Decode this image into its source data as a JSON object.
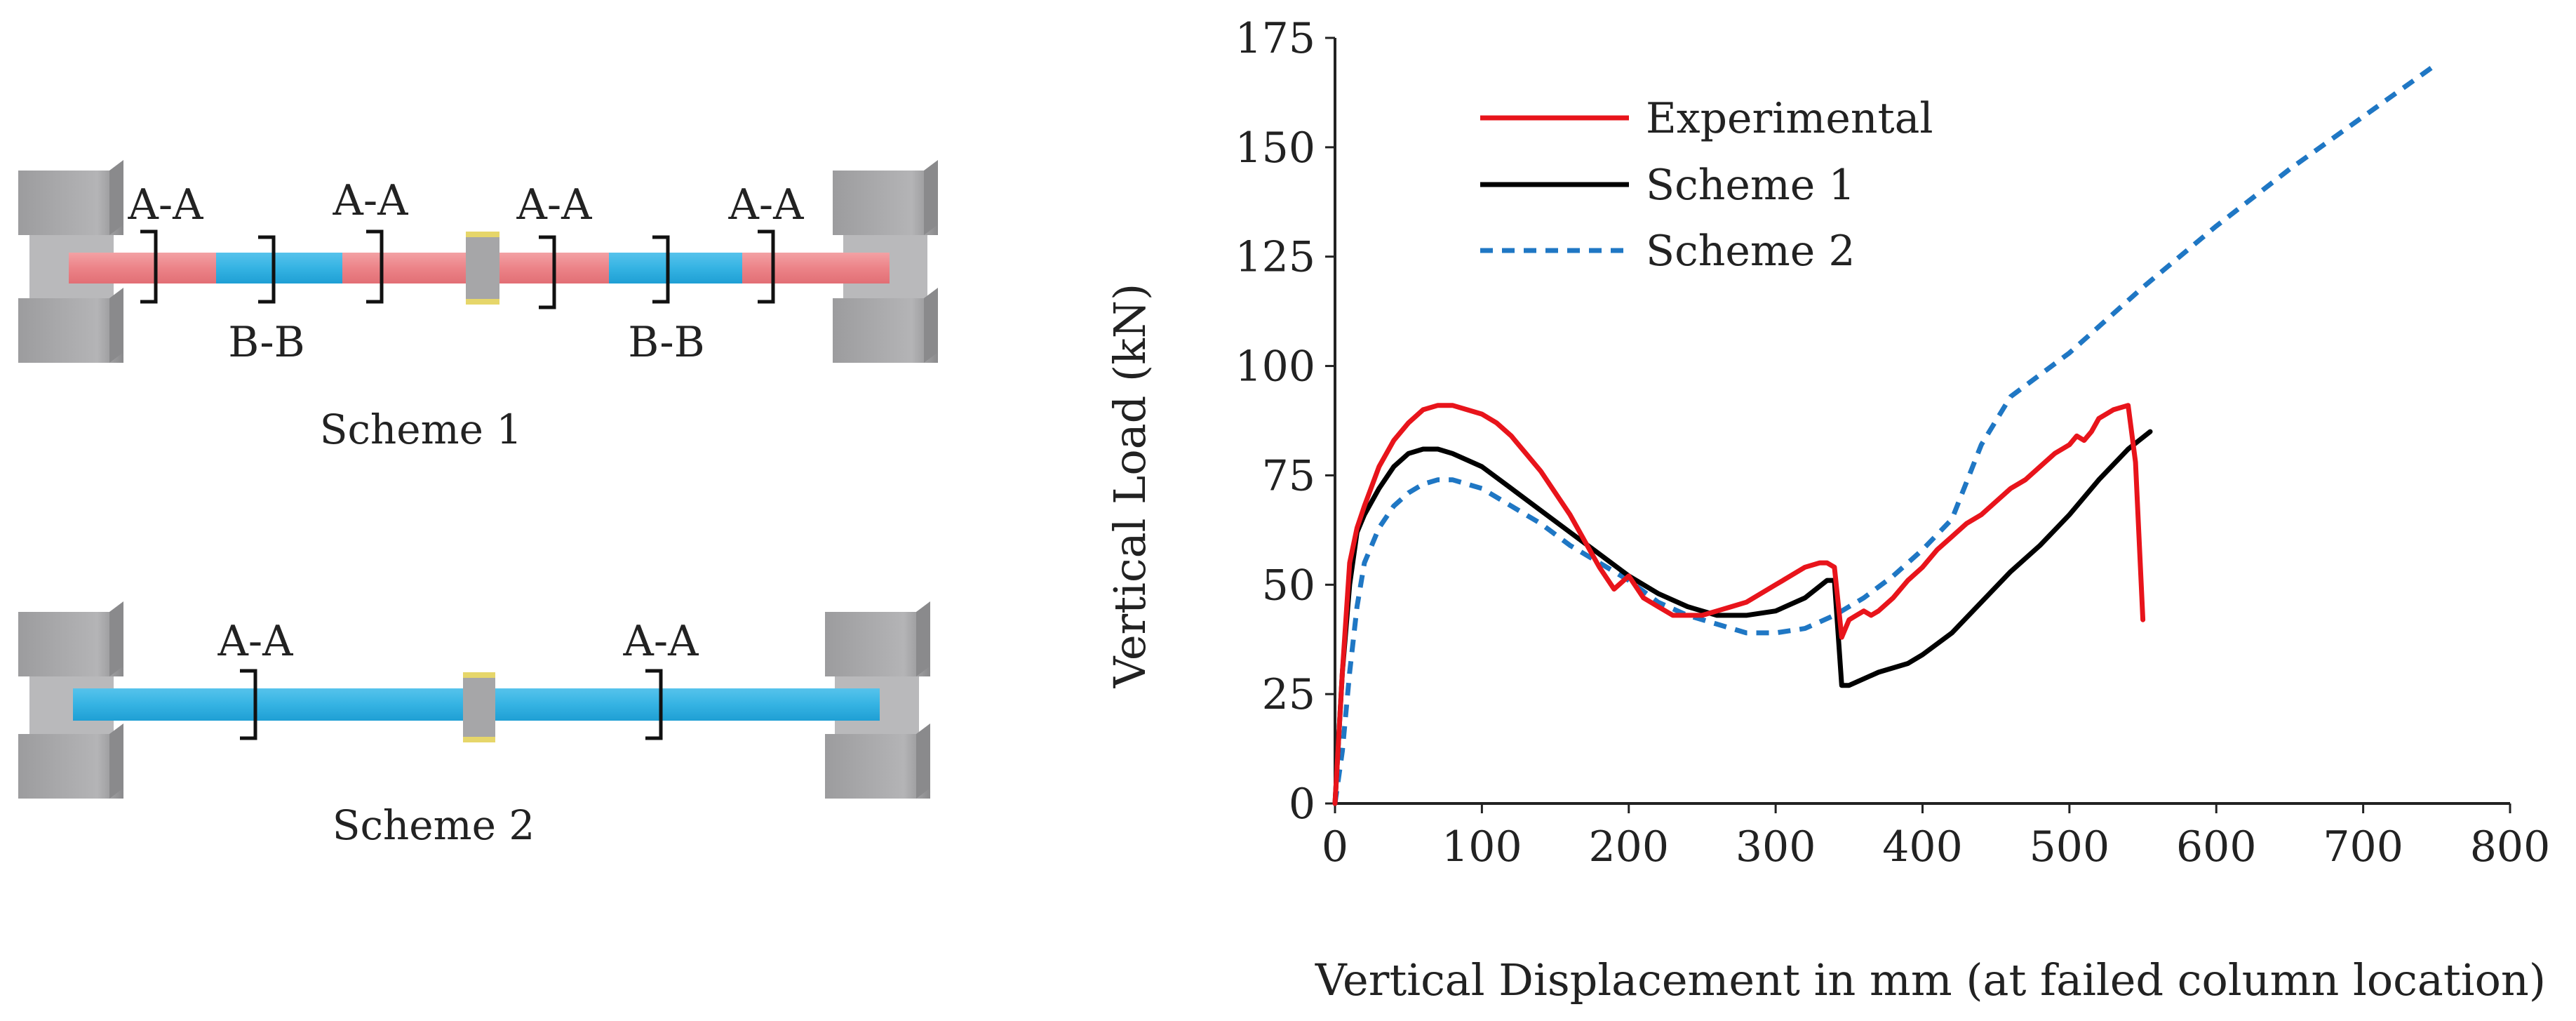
{
  "schemes": {
    "scheme1": {
      "caption": "Scheme 1",
      "section_labels_top": [
        "A-A",
        "A-A",
        "A-A",
        "A-A"
      ],
      "section_labels_bottom": [
        "B-B",
        "B-B"
      ]
    },
    "scheme2": {
      "caption": "Scheme 2",
      "section_labels_top": [
        "A-A",
        "A-A"
      ]
    }
  },
  "colors": {
    "experimental": "#e8141b",
    "scheme1": "#000000",
    "scheme2": "#1f77c4",
    "beam_red": "#ee8a8e",
    "beam_blue": "#34b4e4",
    "block_gray": "#a9a9ab",
    "block_gray_dark": "#8a8a8c"
  },
  "chart_data": {
    "type": "line",
    "title": "",
    "xlabel": "Vertical Displacement in mm (at failed column location)",
    "ylabel": "Vertical Load (kN)",
    "xlim": [
      0,
      800
    ],
    "ylim": [
      0,
      175
    ],
    "xticks": [
      0,
      100,
      200,
      300,
      400,
      500,
      600,
      700,
      800
    ],
    "yticks": [
      0,
      25,
      50,
      75,
      100,
      125,
      150,
      175
    ],
    "grid": false,
    "legend_position": "top-left",
    "series": [
      {
        "name": "Experimental",
        "style": "solid",
        "color": "#e8141b",
        "x": [
          0,
          5,
          10,
          15,
          20,
          30,
          40,
          50,
          60,
          70,
          80,
          90,
          100,
          110,
          120,
          130,
          140,
          150,
          160,
          170,
          180,
          190,
          200,
          210,
          220,
          230,
          240,
          250,
          260,
          270,
          280,
          290,
          300,
          310,
          320,
          330,
          335,
          340,
          345,
          350,
          355,
          360,
          365,
          370,
          380,
          390,
          400,
          410,
          420,
          430,
          440,
          450,
          460,
          470,
          480,
          490,
          500,
          505,
          510,
          515,
          520,
          530,
          540,
          545,
          550
        ],
        "y": [
          0,
          30,
          55,
          63,
          68,
          77,
          83,
          87,
          90,
          91,
          91,
          90,
          89,
          87,
          84,
          80,
          76,
          71,
          66,
          60,
          54,
          49,
          52,
          47,
          45,
          43,
          43,
          43,
          44,
          45,
          46,
          48,
          50,
          52,
          54,
          55,
          55,
          54,
          38,
          42,
          43,
          44,
          43,
          44,
          47,
          51,
          54,
          58,
          61,
          64,
          66,
          69,
          72,
          74,
          77,
          80,
          82,
          84,
          83,
          85,
          88,
          90,
          91,
          78,
          42
        ]
      },
      {
        "name": "Scheme 1",
        "style": "solid",
        "color": "#000000",
        "x": [
          0,
          5,
          10,
          15,
          20,
          30,
          40,
          50,
          60,
          70,
          80,
          100,
          120,
          140,
          160,
          180,
          200,
          220,
          240,
          260,
          280,
          300,
          320,
          335,
          340,
          345,
          350,
          370,
          390,
          400,
          420,
          440,
          460,
          480,
          500,
          520,
          540,
          555
        ],
        "y": [
          0,
          30,
          50,
          62,
          66,
          72,
          77,
          80,
          81,
          81,
          80,
          77,
          72,
          67,
          62,
          57,
          52,
          48,
          45,
          43,
          43,
          44,
          47,
          51,
          51,
          27,
          27,
          30,
          32,
          34,
          39,
          46,
          53,
          59,
          66,
          74,
          81,
          85
        ]
      },
      {
        "name": "Scheme 2",
        "style": "dashed",
        "color": "#1f77c4",
        "x": [
          0,
          5,
          10,
          15,
          20,
          30,
          40,
          50,
          60,
          70,
          80,
          100,
          120,
          140,
          160,
          180,
          200,
          220,
          240,
          260,
          280,
          300,
          320,
          340,
          360,
          380,
          400,
          420,
          440,
          460,
          480,
          500,
          550,
          600,
          650,
          700,
          750
        ],
        "y": [
          0,
          12,
          30,
          45,
          55,
          63,
          68,
          71,
          73,
          74,
          74,
          72,
          68,
          64,
          59,
          55,
          51,
          46,
          43,
          41,
          39,
          39,
          40,
          43,
          47,
          52,
          58,
          65,
          82,
          93,
          98,
          103,
          118,
          132,
          145,
          157,
          169
        ]
      }
    ]
  }
}
